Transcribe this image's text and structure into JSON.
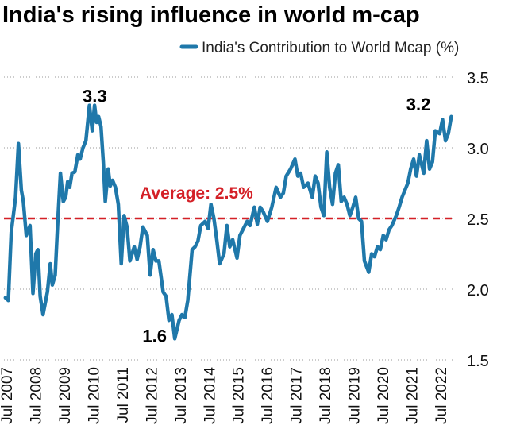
{
  "chart_data": {
    "type": "line",
    "title": "India's rising influence in world m-cap",
    "xlabel": "",
    "ylabel": "",
    "ylim": [
      1.5,
      3.5
    ],
    "yticks": [
      "3.5",
      "3.0",
      "2.5",
      "2.0",
      "1.5"
    ],
    "ytick_values": [
      3.5,
      3.0,
      2.5,
      2.0,
      1.5
    ],
    "xticks": [
      "Jul 2007",
      "Jul 2008",
      "Jul 2009",
      "Jul 2010",
      "Jul 2011",
      "Jul 2012",
      "Jul 2013",
      "Jul 2014",
      "Jul 2015",
      "Jul 2016",
      "Jul 2017",
      "Jul 2018",
      "Jul 2019",
      "Jul 2020",
      "Jul 2021",
      "Jul 2022"
    ],
    "grid": "horizontal dotted",
    "legend_position": "top-right",
    "series": [
      {
        "name": "India's Contribution to World Mcap (%)",
        "color": "#1f78aa",
        "x": [
          2007.0,
          2007.1,
          2007.2,
          2007.35,
          2007.45,
          2007.55,
          2007.62,
          2007.72,
          2007.85,
          2007.95,
          2008.05,
          2008.12,
          2008.2,
          2008.3,
          2008.45,
          2008.55,
          2008.62,
          2008.72,
          2008.8,
          2008.9,
          2009.0,
          2009.08,
          2009.15,
          2009.22,
          2009.3,
          2009.4,
          2009.5,
          2009.58,
          2009.68,
          2009.78,
          2009.9,
          2010.0,
          2010.08,
          2010.15,
          2010.22,
          2010.3,
          2010.38,
          2010.45,
          2010.55,
          2010.62,
          2010.7,
          2010.8,
          2010.9,
          2011.0,
          2011.1,
          2011.2,
          2011.3,
          2011.45,
          2011.55,
          2011.65,
          2011.75,
          2011.9,
          2012.0,
          2012.1,
          2012.2,
          2012.3,
          2012.45,
          2012.55,
          2012.65,
          2012.75,
          2012.85,
          2013.0,
          2013.1,
          2013.2,
          2013.3,
          2013.45,
          2013.55,
          2013.65,
          2013.75,
          2013.9,
          2014.0,
          2014.1,
          2014.2,
          2014.3,
          2014.4,
          2014.55,
          2014.65,
          2014.75,
          2014.85,
          2015.0,
          2015.1,
          2015.2,
          2015.35,
          2015.45,
          2015.6,
          2015.7,
          2015.8,
          2015.9,
          2016.05,
          2016.2,
          2016.35,
          2016.5,
          2016.6,
          2016.7,
          2016.85,
          2017.0,
          2017.1,
          2017.2,
          2017.3,
          2017.45,
          2017.6,
          2017.7,
          2017.8,
          2017.9,
          2018.0,
          2018.1,
          2018.2,
          2018.3,
          2018.4,
          2018.5,
          2018.6,
          2018.7,
          2018.8,
          2018.9,
          2019.0,
          2019.1,
          2019.2,
          2019.3,
          2019.4,
          2019.55,
          2019.65,
          2019.75,
          2019.85,
          2019.95,
          2020.05,
          2020.15,
          2020.25,
          2020.35,
          2020.5,
          2020.6,
          2020.7,
          2020.8,
          2020.9,
          2021.0,
          2021.1,
          2021.2,
          2021.3,
          2021.45,
          2021.55,
          2021.65,
          2021.75,
          2021.85,
          2022.0,
          2022.1,
          2022.2,
          2022.3,
          2022.4
        ],
        "values": [
          1.94,
          1.92,
          2.4,
          2.65,
          3.03,
          2.7,
          2.62,
          2.38,
          2.45,
          1.97,
          2.25,
          2.28,
          1.95,
          1.82,
          1.98,
          2.18,
          2.03,
          2.1,
          2.45,
          2.82,
          2.62,
          2.65,
          2.76,
          2.72,
          2.82,
          2.83,
          2.95,
          2.92,
          3.0,
          3.05,
          3.3,
          3.12,
          3.3,
          3.18,
          3.22,
          3.15,
          2.9,
          2.62,
          2.85,
          2.73,
          2.77,
          2.72,
          2.6,
          2.18,
          2.52,
          2.44,
          2.2,
          2.3,
          2.21,
          2.3,
          2.44,
          2.38,
          2.1,
          2.28,
          2.2,
          2.2,
          1.98,
          1.95,
          1.78,
          1.82,
          1.65,
          1.78,
          1.82,
          1.8,
          1.92,
          2.28,
          2.3,
          2.34,
          2.45,
          2.48,
          2.43,
          2.6,
          2.5,
          2.35,
          2.18,
          2.25,
          2.45,
          2.3,
          2.35,
          2.22,
          2.38,
          2.42,
          2.48,
          2.45,
          2.58,
          2.46,
          2.58,
          2.55,
          2.48,
          2.58,
          2.72,
          2.65,
          2.68,
          2.8,
          2.85,
          2.92,
          2.8,
          2.82,
          2.72,
          2.75,
          2.65,
          2.8,
          2.75,
          2.58,
          2.52,
          2.97,
          2.72,
          2.6,
          2.82,
          2.88,
          2.62,
          2.65,
          2.6,
          2.52,
          2.58,
          2.65,
          2.5,
          2.48,
          2.2,
          2.12,
          2.25,
          2.23,
          2.3,
          2.28,
          2.38,
          2.35,
          2.42,
          2.45,
          2.52,
          2.58,
          2.65,
          2.7,
          2.75,
          2.85,
          2.92,
          2.8,
          2.95,
          2.82,
          3.05,
          2.85,
          2.9,
          3.12,
          3.1,
          3.2,
          3.05,
          3.1,
          3.22
        ]
      }
    ],
    "reference_line": {
      "value": 2.5,
      "label": "Average: 2.5%",
      "color": "#d42027"
    },
    "annotations": [
      {
        "text": "3.3",
        "x": 2010.05,
        "y": 3.3
      },
      {
        "text": "1.6",
        "x": 2013.05,
        "y": 1.65
      },
      {
        "text": "3.2",
        "x": 2022.0,
        "y": 3.22
      }
    ]
  }
}
